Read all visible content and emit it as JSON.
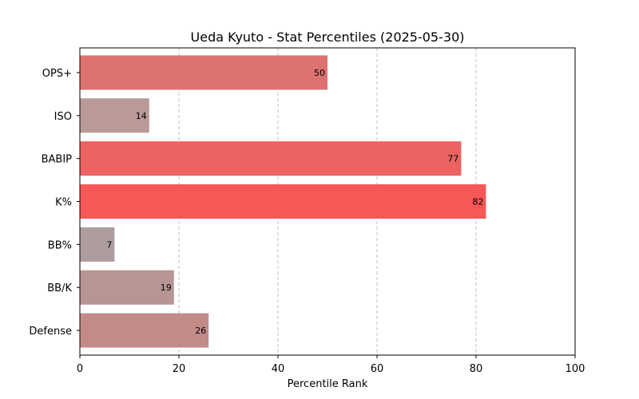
{
  "chart_data": {
    "type": "bar",
    "orientation": "horizontal",
    "title": "Ueda Kyuto - Stat Percentiles (2025-05-30)",
    "xlabel": "Percentile Rank",
    "ylabel": "",
    "xlim": [
      0,
      100
    ],
    "xticks": [
      0,
      20,
      40,
      60,
      80,
      100
    ],
    "grid": "x-dashed",
    "categories": [
      "OPS+",
      "ISO",
      "BABIP",
      "K%",
      "BB%",
      "BB/K",
      "Defense"
    ],
    "values": [
      50,
      14,
      77,
      82,
      7,
      19,
      26
    ],
    "colors": [
      "#dc7371",
      "#b99a98",
      "#ec6261",
      "#f65757",
      "#ae9d9d",
      "#b79595",
      "#c28b8a"
    ]
  }
}
